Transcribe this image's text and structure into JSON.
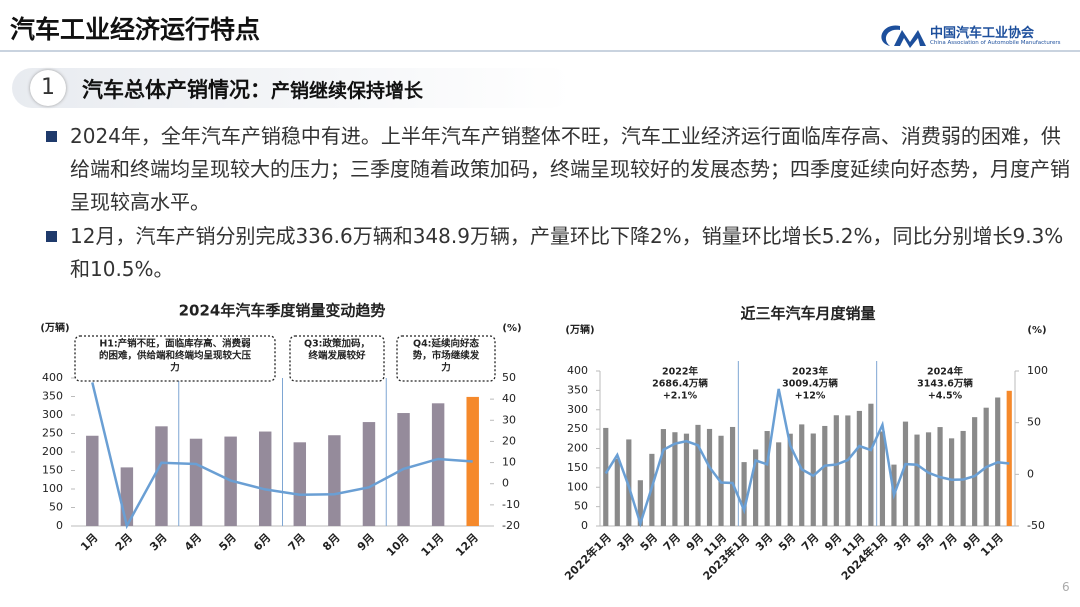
{
  "header": {
    "title": "汽车工业经济运行特点",
    "logo_cn": "中国汽车工业协会",
    "logo_en": "China Association of Automobile Manufacturers"
  },
  "section": {
    "number": "1",
    "title": "汽车总体产销情况：",
    "subtitle": "产销继续保持增长"
  },
  "bullets": [
    "2024年，全年汽车产销稳中有进。上半年汽车产销整体不旺，汽车工业经济运行面临库存高、消费弱的困难，供给端和终端均呈现较大的压力；三季度随着政策加码，终端呈现较好的发展态势；四季度延续向好态势，月度产销呈现较高水平。",
    "12月，汽车产销分别完成336.6万辆和348.9万辆，产量环比下降2%，销量环比增长5.2%，同比分别增长9.3%和10.5%。"
  ],
  "page_number": "6",
  "chart_data": [
    {
      "type": "bar",
      "title": "2024年汽车季度销量变动趋势",
      "y_unit": "(万辆)",
      "y2_unit": "(%)",
      "categories": [
        "1月",
        "2月",
        "3月",
        "4月",
        "5月",
        "6月",
        "7月",
        "8月",
        "9月",
        "10月",
        "11月",
        "12月"
      ],
      "series": [
        {
          "colors": [
            "#958b9b",
            "#958b9b",
            "#958b9b",
            "#958b9b",
            "#958b9b",
            "#958b9b",
            "#958b9b",
            "#958b9b",
            "#958b9b",
            "#958b9b",
            "#958b9b",
            "#f5892b"
          ],
          "values": [
            243.9,
            158.4,
            269.4,
            235.9,
            241.7,
            255.3,
            226.2,
            245.3,
            280.9,
            305.3,
            331.6,
            348.9
          ]
        },
        {
          "type": "line",
          "axis": "y2",
          "color": "#6a9fd4",
          "values": [
            47.9,
            -19.9,
            9.9,
            9.3,
            1.5,
            -2.7,
            -5.2,
            -5,
            -1.7,
            7,
            11.7,
            10.5
          ]
        }
      ],
      "ylim": [
        0,
        400
      ],
      "yticks": [
        0,
        50,
        100,
        150,
        200,
        250,
        300,
        350,
        400
      ],
      "y2lim": [
        -20,
        50
      ],
      "y2ticks": [
        -20,
        -10,
        0,
        10,
        20,
        30,
        40,
        50
      ],
      "annotations": [
        {
          "lines": [
            "H1:产销不旺，面临库存高、消费弱",
            "的困难，供给端和终端均呈现较大压",
            "力"
          ]
        },
        {
          "lines": [
            "Q3:政策加码，",
            "终端发展较好"
          ]
        },
        {
          "lines": [
            "Q4:延续向好态",
            "势，市场继续发",
            "力"
          ]
        }
      ]
    },
    {
      "type": "bar",
      "title": "近三年汽车月度销量",
      "y_unit": "(万辆)",
      "y2_unit": "(%)",
      "categories": [
        "2022年1月",
        null,
        "3月",
        null,
        "5月",
        null,
        "7月",
        null,
        "9月",
        null,
        "11月",
        null,
        "2023年1月",
        null,
        "3月",
        null,
        "5月",
        null,
        "7月",
        null,
        "9月",
        null,
        "11月",
        null,
        "2024年1月",
        null,
        "3月",
        null,
        "5月",
        null,
        "7月",
        null,
        "9月",
        null,
        "11月",
        null
      ],
      "series": [
        {
          "colors": [
            "#8a8a8a",
            "#8a8a8a",
            "#8a8a8a",
            "#8a8a8a",
            "#8a8a8a",
            "#8a8a8a",
            "#8a8a8a",
            "#8a8a8a",
            "#8a8a8a",
            "#8a8a8a",
            "#8a8a8a",
            "#8a8a8a",
            "#8a8a8a",
            "#8a8a8a",
            "#8a8a8a",
            "#8a8a8a",
            "#8a8a8a",
            "#8a8a8a",
            "#8a8a8a",
            "#8a8a8a",
            "#8a8a8a",
            "#8a8a8a",
            "#8a8a8a",
            "#8a8a8a",
            "#8a8a8a",
            "#8a8a8a",
            "#8a8a8a",
            "#8a8a8a",
            "#8a8a8a",
            "#8a8a8a",
            "#8a8a8a",
            "#8a8a8a",
            "#8a8a8a",
            "#8a8a8a",
            "#8a8a8a",
            "#f5892b"
          ],
          "values": [
            253.1,
            173.7,
            223.4,
            118.1,
            186.2,
            250.2,
            242,
            238.3,
            261,
            250.5,
            232.9,
            255.6,
            164.9,
            197.6,
            245.1,
            215.9,
            238.2,
            262.2,
            238.7,
            258.2,
            285.8,
            285.3,
            297,
            315.6,
            243.9,
            158.4,
            269.4,
            235.9,
            241.7,
            255.3,
            226.2,
            245.3,
            280.9,
            305.3,
            331.6,
            348.9
          ]
        },
        {
          "type": "line",
          "axis": "y2",
          "color": "#6a9fd4",
          "values": [
            0.9,
            18.7,
            -11.7,
            -47.6,
            -12.6,
            23.8,
            29.7,
            32.1,
            28.1,
            6.9,
            -7.9,
            -8.4,
            -34.8,
            13.5,
            9.7,
            82.7,
            27.9,
            4.8,
            -1.4,
            8.4,
            9.5,
            13.8,
            27.4,
            23.5,
            47.9,
            -19.9,
            9.9,
            9.3,
            1.5,
            -2.7,
            -5.2,
            -5,
            -1.7,
            7,
            11.7,
            10.5
          ]
        }
      ],
      "ylim": [
        0,
        400
      ],
      "yticks": [
        0,
        50,
        100,
        150,
        200,
        250,
        300,
        350,
        400
      ],
      "y2lim": [
        -50,
        100
      ],
      "y2ticks": [
        -50,
        0,
        50,
        100
      ],
      "annotations": [
        {
          "lines": [
            "2022年",
            "2686.4万辆",
            "+2.1%"
          ]
        },
        {
          "lines": [
            "2023年",
            "3009.4万辆",
            "+12%"
          ]
        },
        {
          "lines": [
            "2024年",
            "3143.6万辆",
            "+4.5%"
          ]
        }
      ]
    }
  ]
}
